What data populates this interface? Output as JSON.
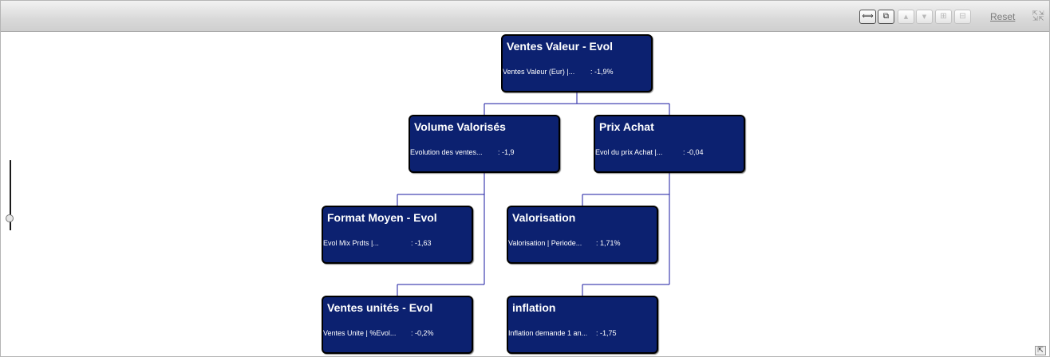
{
  "toolbar": {
    "buttons": [
      {
        "name": "fit-to-window-icon",
        "glyph": "⟺",
        "state": "active"
      },
      {
        "name": "collapse-all-icon",
        "glyph": "⧉",
        "state": "active"
      },
      {
        "name": "move-up-icon",
        "glyph": "▲",
        "state": "disabled"
      },
      {
        "name": "move-down-icon",
        "glyph": "▼",
        "state": "disabled"
      },
      {
        "name": "expand-node-icon",
        "glyph": "⊞",
        "state": "disabled"
      },
      {
        "name": "collapse-node-icon",
        "glyph": "⊟",
        "state": "disabled"
      }
    ],
    "reset_label": "Reset",
    "fullscreen_icon": "expand-arrows-icon"
  },
  "colors": {
    "node_fill": "#0c2170",
    "node_border": "#000000",
    "connector": "#1a1aa0",
    "toolbar": "#d9d9d9"
  },
  "tree": {
    "nodes": [
      {
        "id": "ventes-valeur",
        "title": "Ventes Valeur - Evol",
        "label": "Ventes Valeur (Eur) |...",
        "value": ": -1,9%"
      },
      {
        "id": "volume-valorises",
        "title": "Volume Valorisés",
        "label": "Evolution des ventes...",
        "value": ": -1,9"
      },
      {
        "id": "prix-achat",
        "title": "Prix Achat",
        "label": "Evol du prix Achat |...",
        "value": ": -0,04"
      },
      {
        "id": "format-moyen",
        "title": "Format Moyen - Evol",
        "label": "Evol Mix Prdts |...",
        "value": ": -1,63"
      },
      {
        "id": "valorisation",
        "title": "Valorisation",
        "label": "Valorisation | Periode...",
        "value": ": 1,71%"
      },
      {
        "id": "ventes-unites",
        "title": "Ventes unités - Evol",
        "label": "Ventes Unite | %Evol...",
        "value": ": -0,2%"
      },
      {
        "id": "inflation",
        "title": "inflation",
        "label": "Inflation demande 1 an...",
        "value": ": -1,75"
      }
    ]
  },
  "zoom_slider": {
    "level": 0.1
  },
  "corner_button_icon": "arrow-up-left-icon"
}
